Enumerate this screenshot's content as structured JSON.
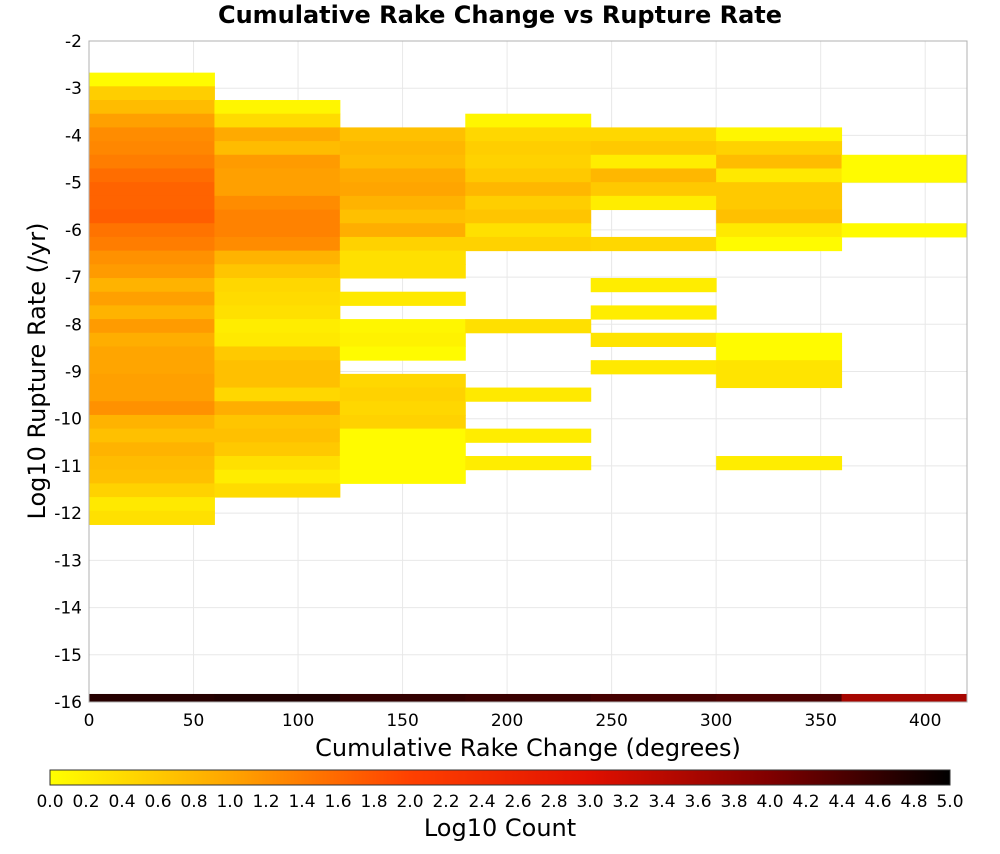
{
  "chart_data": {
    "type": "heatmap",
    "title": "Cumulative Rake Change vs Rupture Rate",
    "xlabel": "Cumulative Rake Change (degrees)",
    "ylabel": "Log10 Rupture Rate (/yr)",
    "xlim": [
      0,
      420
    ],
    "ylim": [
      -16,
      -2
    ],
    "x_ticks": [
      "0",
      "50",
      "100",
      "150",
      "200",
      "250",
      "300",
      "350",
      "400"
    ],
    "y_ticks": [
      "-2",
      "-3",
      "-4",
      "-5",
      "-6",
      "-7",
      "-8",
      "-9",
      "-10",
      "-11",
      "-12",
      "-13",
      "-14",
      "-15",
      "-16"
    ],
    "grid": true,
    "bin_width_x": 60,
    "bin_height_y": 0.29,
    "colorbar": {
      "label": "Log10 Count",
      "range": [
        0,
        5
      ],
      "ticks": [
        "0.0",
        "0.2",
        "0.4",
        "0.6",
        "0.8",
        "1.0",
        "1.2",
        "1.4",
        "1.6",
        "1.8",
        "2.0",
        "2.2",
        "2.4",
        "2.6",
        "2.8",
        "3.0",
        "3.2",
        "3.4",
        "3.6",
        "3.8",
        "4.0",
        "4.2",
        "4.4",
        "4.6",
        "4.8",
        "5.0"
      ],
      "stops": [
        "#ffff00",
        "#ffa500",
        "#ff4000",
        "#e01000",
        "#800000",
        "#000000"
      ]
    },
    "columns": [
      {
        "x0": 0,
        "x1": 60,
        "cells": [
          [
            -2.96,
            -2.67,
            0.05
          ],
          [
            -3.25,
            -2.96,
            0.55
          ],
          [
            -3.54,
            -3.25,
            0.75
          ],
          [
            -3.83,
            -3.54,
            1.05
          ],
          [
            -4.12,
            -3.83,
            1.25
          ],
          [
            -4.41,
            -4.12,
            1.3
          ],
          [
            -4.7,
            -4.41,
            1.4
          ],
          [
            -4.99,
            -4.7,
            1.55
          ],
          [
            -5.28,
            -4.99,
            1.65
          ],
          [
            -5.57,
            -5.28,
            1.65
          ],
          [
            -5.86,
            -5.57,
            1.7
          ],
          [
            -6.15,
            -5.86,
            1.5
          ],
          [
            -6.44,
            -6.15,
            1.4
          ],
          [
            -6.73,
            -6.44,
            1.2
          ],
          [
            -7.02,
            -6.73,
            1.1
          ],
          [
            -7.31,
            -7.02,
            0.85
          ],
          [
            -7.6,
            -7.31,
            1.05
          ],
          [
            -7.89,
            -7.6,
            0.85
          ],
          [
            -8.18,
            -7.89,
            1.1
          ],
          [
            -8.47,
            -8.18,
            0.9
          ],
          [
            -8.76,
            -8.47,
            1.0
          ],
          [
            -9.05,
            -8.76,
            1.0
          ],
          [
            -9.34,
            -9.05,
            1.05
          ],
          [
            -9.63,
            -9.34,
            1.05
          ],
          [
            -9.92,
            -9.63,
            1.2
          ],
          [
            -10.21,
            -9.92,
            0.85
          ],
          [
            -10.5,
            -10.21,
            0.7
          ],
          [
            -10.79,
            -10.5,
            0.85
          ],
          [
            -11.08,
            -10.79,
            0.75
          ],
          [
            -11.37,
            -11.08,
            0.7
          ],
          [
            -11.66,
            -11.37,
            0.5
          ],
          [
            -11.95,
            -11.66,
            0.25
          ],
          [
            -12.24,
            -11.95,
            0.35
          ]
        ]
      },
      {
        "x0": 60,
        "x1": 120,
        "cells": [
          [
            -3.54,
            -3.25,
            0.1
          ],
          [
            -3.83,
            -3.54,
            0.4
          ],
          [
            -4.12,
            -3.83,
            0.95
          ],
          [
            -4.41,
            -4.12,
            0.75
          ],
          [
            -4.7,
            -4.41,
            1.1
          ],
          [
            -4.99,
            -4.7,
            1.05
          ],
          [
            -5.28,
            -4.99,
            1.05
          ],
          [
            -5.57,
            -5.28,
            1.25
          ],
          [
            -5.86,
            -5.57,
            1.35
          ],
          [
            -6.15,
            -5.86,
            1.35
          ],
          [
            -6.44,
            -6.15,
            1.25
          ],
          [
            -6.73,
            -6.44,
            0.85
          ],
          [
            -7.02,
            -6.73,
            0.65
          ],
          [
            -7.31,
            -7.02,
            0.45
          ],
          [
            -7.6,
            -7.31,
            0.4
          ],
          [
            -7.89,
            -7.6,
            0.35
          ],
          [
            -8.18,
            -7.89,
            0.2
          ],
          [
            -8.47,
            -8.18,
            0.25
          ],
          [
            -8.76,
            -8.47,
            0.6
          ],
          [
            -9.05,
            -8.76,
            0.7
          ],
          [
            -9.34,
            -9.05,
            0.7
          ],
          [
            -9.63,
            -9.34,
            0.45
          ],
          [
            -9.92,
            -9.63,
            0.9
          ],
          [
            -10.21,
            -9.92,
            0.65
          ],
          [
            -10.5,
            -10.21,
            0.7
          ],
          [
            -10.79,
            -10.5,
            0.6
          ],
          [
            -11.08,
            -10.79,
            0.35
          ],
          [
            -11.37,
            -11.08,
            0.2
          ],
          [
            -11.66,
            -11.37,
            0.4
          ]
        ]
      },
      {
        "x0": 120,
        "x1": 180,
        "cells": [
          [
            -4.12,
            -3.83,
            0.7
          ],
          [
            -4.41,
            -4.12,
            0.8
          ],
          [
            -4.7,
            -4.41,
            0.75
          ],
          [
            -4.99,
            -4.7,
            0.95
          ],
          [
            -5.28,
            -4.99,
            1.0
          ],
          [
            -5.57,
            -5.28,
            0.85
          ],
          [
            -5.86,
            -5.57,
            0.7
          ],
          [
            -6.15,
            -5.86,
            0.9
          ],
          [
            -6.44,
            -6.15,
            0.5
          ],
          [
            -6.73,
            -6.44,
            0.35
          ],
          [
            -7.02,
            -6.73,
            0.35
          ],
          [
            -7.6,
            -7.31,
            0.25
          ],
          [
            -8.18,
            -7.89,
            0.1
          ],
          [
            -8.47,
            -8.18,
            0.15
          ],
          [
            -8.76,
            -8.47,
            0.05
          ],
          [
            -9.34,
            -9.05,
            0.45
          ],
          [
            -9.63,
            -9.34,
            0.5
          ],
          [
            -9.92,
            -9.63,
            0.45
          ],
          [
            -10.21,
            -9.92,
            0.5
          ],
          [
            -10.5,
            -10.21,
            0.05
          ],
          [
            -10.79,
            -10.5,
            0.05
          ],
          [
            -11.08,
            -10.79,
            0.05
          ],
          [
            -11.37,
            -11.08,
            0.05
          ]
        ]
      },
      {
        "x0": 180,
        "x1": 240,
        "cells": [
          [
            -3.83,
            -3.54,
            0.1
          ],
          [
            -4.12,
            -3.83,
            0.45
          ],
          [
            -4.41,
            -4.12,
            0.55
          ],
          [
            -4.7,
            -4.41,
            0.5
          ],
          [
            -4.99,
            -4.7,
            0.6
          ],
          [
            -5.28,
            -4.99,
            0.8
          ],
          [
            -5.57,
            -5.28,
            0.55
          ],
          [
            -5.86,
            -5.57,
            0.65
          ],
          [
            -6.15,
            -5.86,
            0.35
          ],
          [
            -6.44,
            -6.15,
            0.5
          ],
          [
            -8.18,
            -7.89,
            0.35
          ],
          [
            -9.63,
            -9.34,
            0.25
          ],
          [
            -10.5,
            -10.21,
            0.2
          ],
          [
            -11.08,
            -10.79,
            0.2
          ]
        ]
      },
      {
        "x0": 240,
        "x1": 300,
        "cells": [
          [
            -4.12,
            -3.83,
            0.45
          ],
          [
            -4.41,
            -4.12,
            0.6
          ],
          [
            -4.7,
            -4.41,
            0.2
          ],
          [
            -4.99,
            -4.7,
            0.8
          ],
          [
            -5.28,
            -4.99,
            0.6
          ],
          [
            -5.57,
            -5.28,
            0.2
          ],
          [
            -6.44,
            -6.15,
            0.45
          ],
          [
            -7.31,
            -7.02,
            0.2
          ],
          [
            -7.89,
            -7.6,
            0.2
          ],
          [
            -8.47,
            -8.18,
            0.3
          ],
          [
            -9.05,
            -8.76,
            0.25
          ]
        ]
      },
      {
        "x0": 300,
        "x1": 360,
        "cells": [
          [
            -4.12,
            -3.83,
            0.1
          ],
          [
            -4.41,
            -4.12,
            0.5
          ],
          [
            -4.7,
            -4.41,
            0.75
          ],
          [
            -4.99,
            -4.7,
            0.25
          ],
          [
            -5.28,
            -4.99,
            0.6
          ],
          [
            -5.57,
            -5.28,
            0.6
          ],
          [
            -5.86,
            -5.57,
            0.7
          ],
          [
            -6.15,
            -5.86,
            0.25
          ],
          [
            -6.44,
            -6.15,
            0.05
          ],
          [
            -8.47,
            -8.18,
            0.05
          ],
          [
            -8.76,
            -8.47,
            0.05
          ],
          [
            -9.05,
            -8.76,
            0.3
          ],
          [
            -9.34,
            -9.05,
            0.3
          ],
          [
            -11.08,
            -10.79,
            0.2
          ]
        ]
      },
      {
        "x0": 360,
        "x1": 420,
        "cells": [
          [
            -4.7,
            -4.41,
            0.05
          ],
          [
            -4.99,
            -4.7,
            0.05
          ],
          [
            -6.15,
            -5.86,
            0.05
          ]
        ]
      }
    ],
    "bottom_row": {
      "y0": -16.0,
      "y1": -15.83,
      "cells": [
        [
          0,
          60,
          4.7
        ],
        [
          60,
          120,
          4.75
        ],
        [
          120,
          180,
          4.6
        ],
        [
          180,
          240,
          4.55
        ],
        [
          240,
          300,
          4.45
        ],
        [
          300,
          360,
          4.4
        ],
        [
          360,
          420,
          3.6
        ]
      ]
    }
  }
}
